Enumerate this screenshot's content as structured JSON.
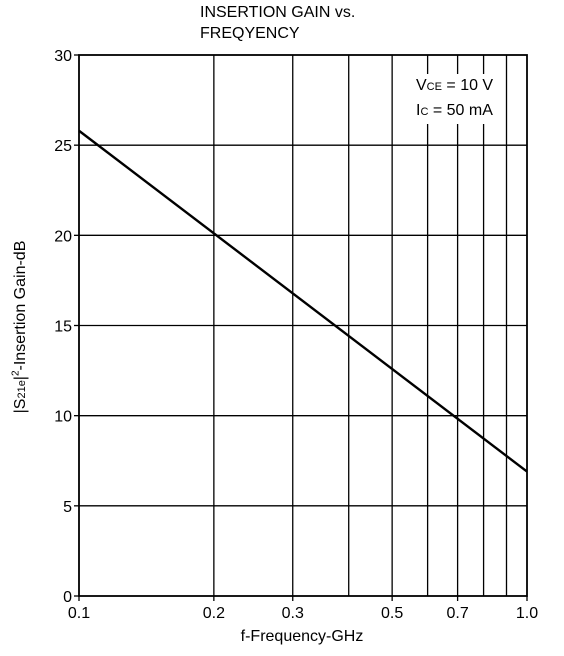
{
  "chart_data": {
    "type": "line",
    "title_lines": [
      "INSERTION GAIN vs.",
      "FREQYENCY"
    ],
    "xlabel": "f-Frequency-GHz",
    "ylabel": {
      "prefix": "|S",
      "sub": "21e",
      "mid": "|",
      "sup": "2",
      "suffix": "-Insertion Gain-dB"
    },
    "x_scale": "log",
    "xlim": [
      0.1,
      1.0
    ],
    "ylim": [
      0,
      30
    ],
    "x_ticks": [
      0.1,
      0.2,
      0.3,
      0.5,
      0.7,
      1.0
    ],
    "x_tick_labels": [
      "0.1",
      "0.2",
      "0.3",
      "0.5",
      "0.7",
      "1.0"
    ],
    "x_grid": [
      0.2,
      0.3,
      0.4,
      0.5,
      0.6,
      0.7,
      0.8,
      0.9
    ],
    "y_ticks": [
      0,
      5,
      10,
      15,
      20,
      25,
      30
    ],
    "y_tick_labels": [
      "0",
      "5",
      "10",
      "15",
      "20",
      "25",
      "30"
    ],
    "grid": true,
    "legend_placement": "top-right",
    "conditions": [
      {
        "symbol": "V",
        "sub": "CE",
        "rest": " = 10 V"
      },
      {
        "symbol": "I",
        "sub": "C",
        "rest": " = 50 mA"
      }
    ],
    "series": [
      {
        "x": [
          0.1,
          1.0
        ],
        "y": [
          25.8,
          6.9
        ]
      }
    ]
  }
}
